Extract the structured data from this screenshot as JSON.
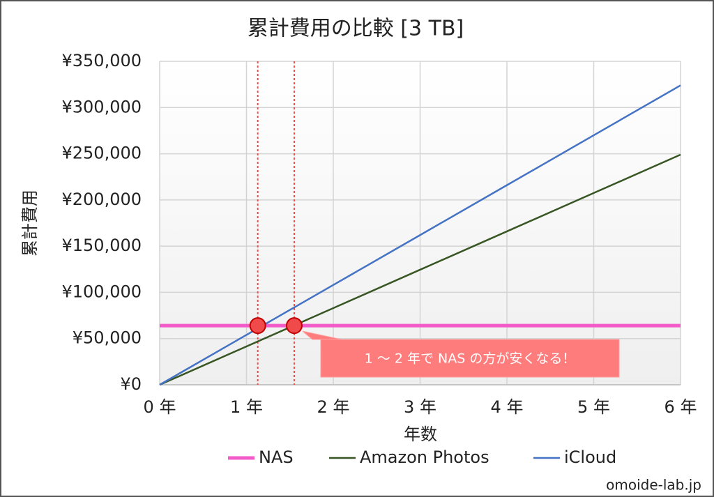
{
  "chart_data": {
    "type": "line",
    "title": "累計費用の比較 [3 TB]",
    "x_label": "年数",
    "y_label": "累計費用",
    "x": [
      0,
      1,
      2,
      3,
      4,
      5,
      6
    ],
    "series": [
      {
        "name": "NAS",
        "color": "#f35bc8",
        "values": [
          64000,
          64000,
          64000,
          64000,
          64000,
          64000,
          64000
        ]
      },
      {
        "name": "Amazon Photos",
        "color": "#375623",
        "values": [
          0,
          41500,
          83000,
          124500,
          166000,
          207500,
          249000
        ]
      },
      {
        "name": "iCloud",
        "color": "#4472c4",
        "values": [
          0,
          54000,
          108000,
          162000,
          216000,
          270000,
          324000
        ]
      }
    ],
    "markers": {
      "x": [
        1.13,
        1.55
      ],
      "y": [
        64000,
        64000
      ],
      "color": "#f04a4a"
    },
    "annotation": "1 ～ 2 年で NAS の方が安くなる！",
    "xlim": [
      0,
      6
    ],
    "xticks": [
      {
        "value": 0,
        "label": "0 年"
      },
      {
        "value": 1,
        "label": "1 年"
      },
      {
        "value": 2,
        "label": "2 年"
      },
      {
        "value": 3,
        "label": "3 年"
      },
      {
        "value": 4,
        "label": "4 年"
      },
      {
        "value": 5,
        "label": "5 年"
      },
      {
        "value": 6,
        "label": "6 年"
      }
    ],
    "ylim": [
      0,
      350000
    ],
    "yticks": [
      {
        "value": 0,
        "label": "¥0"
      },
      {
        "value": 50000,
        "label": "¥50,000"
      },
      {
        "value": 100000,
        "label": "¥100,000"
      },
      {
        "value": 150000,
        "label": "¥150,000"
      },
      {
        "value": 200000,
        "label": "¥200,000"
      },
      {
        "value": 250000,
        "label": "¥250,000"
      },
      {
        "value": 300000,
        "label": "¥300,000"
      },
      {
        "value": 350000,
        "label": "¥350,000"
      }
    ],
    "grid": true,
    "legend": "bottom",
    "source": "omoide-lab.jp"
  }
}
